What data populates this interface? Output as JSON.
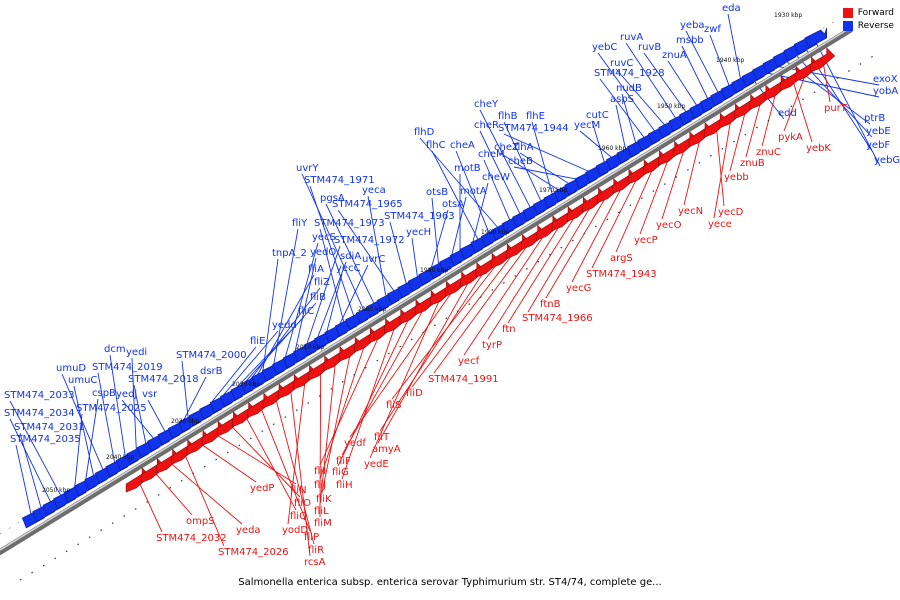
{
  "caption": "Salmonella enterica subsp. enterica serovar Typhimurium str. ST4/74, complete ge...",
  "legend": {
    "forward": {
      "label": "Forward",
      "color": "#ee1111"
    },
    "reverse": {
      "label": "Reverse",
      "color": "#1133ee"
    }
  },
  "colors": {
    "backbone": "#8a8a8a",
    "forward": "#ee1111",
    "reverse": "#1133ee",
    "tick_label": "#111111"
  },
  "position_ticks": [
    "2050 kbp",
    "2040 kbp",
    "2030 kbp",
    "2020 kbp",
    "2010 kbp",
    "2000 kbp",
    "1990 kbp",
    "1980 kbp",
    "1970 kbp",
    "1960 kbp",
    "1950 kbp",
    "1940 kbp",
    "1930 kbp"
  ],
  "reverse_genes": [
    "STM474_2035",
    "STM474_2031",
    "STM474_2034",
    "STM474_2033",
    "STM474_2025",
    "cspB",
    "umuC",
    "umuD",
    "STM474_2019",
    "dcm",
    "yedi",
    "STM474_2018",
    "yedj",
    "vsr",
    "dsrB",
    "STM474_2000",
    "fliE",
    "yedd",
    "fliC",
    "fliB",
    "fliZ",
    "fliA",
    "tnpA_2",
    "fliY",
    "yecS",
    "yedO",
    "STM474_1972",
    "sdiA",
    "yecC",
    "uvrC",
    "STM474_1973",
    "STM474_1971",
    "uvrY",
    "pgsA",
    "yeca",
    "STM474_1965",
    "STM474_1963",
    "yecH",
    "otsA",
    "otsB",
    "motA",
    "motB",
    "cheW",
    "flhC",
    "cheA",
    "flhD",
    "cheM",
    "cheR",
    "cheY",
    "flhB",
    "flhE",
    "cheZ",
    "flhA",
    "cheB",
    "STM474_1944",
    "cutC",
    "yecM",
    "aspS",
    "nudB",
    "STM474_1928",
    "yebC",
    "ruvC",
    "ruvA",
    "ruvB",
    "znuA",
    "msbb",
    "yeba",
    "zwf",
    "eda",
    "edd",
    "yobA",
    "exoX",
    "ptrB",
    "yebE",
    "yebF",
    "yebG"
  ],
  "forward_genes": [
    "STM474_2032",
    "ompS",
    "yeda",
    "STM474_2026",
    "yedP",
    "fliN",
    "fliO",
    "fliQ",
    "fliP",
    "fliR",
    "rcsA",
    "yodD",
    "fliM",
    "fliL",
    "fliK",
    "fliJ",
    "fliI",
    "fliH",
    "fliG",
    "fliF",
    "yedE",
    "yedf",
    "amyA",
    "fliT",
    "fliS",
    "fliD",
    "STM474_1991",
    "yecf",
    "tyrP",
    "ftn",
    "STM474_1966",
    "ftnB",
    "yecG",
    "STM474_1943",
    "argS",
    "yecP",
    "yecO",
    "yecN",
    "yecD",
    "yece",
    "yebb",
    "znuB",
    "znuC",
    "yebK",
    "pykA",
    "purT"
  ]
}
